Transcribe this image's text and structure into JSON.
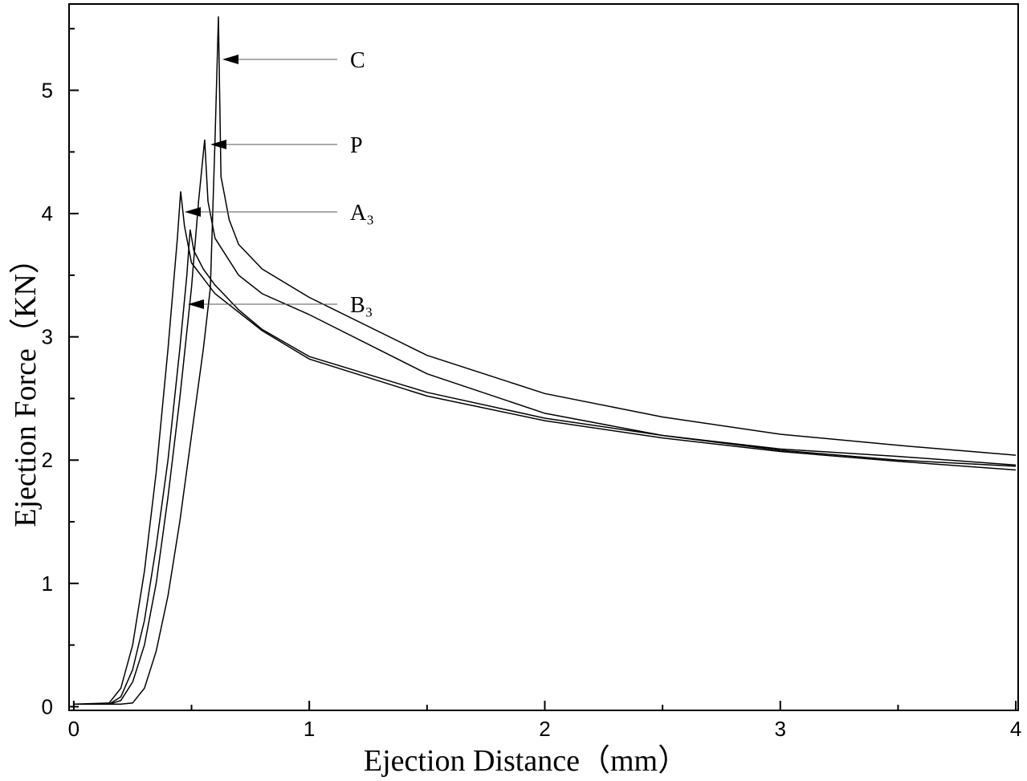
{
  "chart_data": {
    "type": "line",
    "x_label": "Ejection Distance（mm）",
    "y_label": "Ejection Force（KN）",
    "xlim": [
      -0.02,
      4.01
    ],
    "ylim": [
      -0.03,
      5.7
    ],
    "xticks": [
      0,
      1,
      2,
      3,
      4
    ],
    "yticks": [
      0,
      1,
      2,
      3,
      4,
      5
    ],
    "xminorticks": [
      0.5,
      1.5,
      2.5,
      3.5
    ],
    "yminorticks": [
      0.5,
      1.5,
      2.5,
      3.5,
      4.5,
      5.5
    ],
    "series": [
      {
        "name": "C",
        "color": "#000000",
        "x": [
          0,
          0.2,
          0.25,
          0.3,
          0.35,
          0.4,
          0.45,
          0.5,
          0.55,
          0.58,
          0.6,
          0.614,
          0.625,
          0.64,
          0.66,
          0.7,
          0.8,
          1,
          1.5,
          2,
          2.5,
          3,
          3.5,
          4
        ],
        "values": [
          0.02,
          0.02,
          0.03,
          0.15,
          0.45,
          0.9,
          1.5,
          2.2,
          2.9,
          3.4,
          4.6,
          5.6,
          4.3,
          4.15,
          3.95,
          3.75,
          3.55,
          3.32,
          2.85,
          2.54,
          2.35,
          2.21,
          2.12,
          2.04
        ]
      },
      {
        "name": "P",
        "color": "#000000",
        "x": [
          0,
          0.15,
          0.2,
          0.25,
          0.3,
          0.35,
          0.4,
          0.45,
          0.5,
          0.53,
          0.556,
          0.57,
          0.6,
          0.7,
          0.8,
          1,
          1.5,
          2,
          2.5,
          3,
          3.5,
          4
        ],
        "values": [
          0.02,
          0.02,
          0.05,
          0.2,
          0.5,
          1.0,
          1.7,
          2.5,
          3.4,
          4.1,
          4.6,
          4.1,
          3.8,
          3.5,
          3.35,
          3.18,
          2.7,
          2.38,
          2.2,
          2.08,
          2.0,
          1.95
        ]
      },
      {
        "name": "A₃",
        "color": "#000000",
        "x": [
          0,
          0.15,
          0.2,
          0.25,
          0.3,
          0.35,
          0.4,
          0.44,
          0.454,
          0.47,
          0.5,
          0.6,
          0.7,
          0.8,
          1,
          1.5,
          2,
          2.5,
          3,
          3.5,
          4
        ],
        "values": [
          0.02,
          0.03,
          0.15,
          0.5,
          1.1,
          1.9,
          2.9,
          3.8,
          4.18,
          3.9,
          3.6,
          3.35,
          3.2,
          3.05,
          2.82,
          2.52,
          2.32,
          2.18,
          2.07,
          1.99,
          1.92
        ]
      },
      {
        "name": "B₃",
        "color": "#000000",
        "x": [
          0,
          0.15,
          0.2,
          0.25,
          0.3,
          0.35,
          0.4,
          0.45,
          0.48,
          0.494,
          0.51,
          0.55,
          0.6,
          0.7,
          0.8,
          1,
          1.5,
          2,
          2.5,
          3,
          3.5,
          4
        ],
        "values": [
          0.02,
          0.02,
          0.08,
          0.3,
          0.7,
          1.3,
          2.0,
          2.9,
          3.5,
          3.87,
          3.7,
          3.55,
          3.42,
          3.22,
          3.06,
          2.84,
          2.55,
          2.34,
          2.2,
          2.09,
          2.03,
          1.96
        ]
      }
    ]
  }
}
